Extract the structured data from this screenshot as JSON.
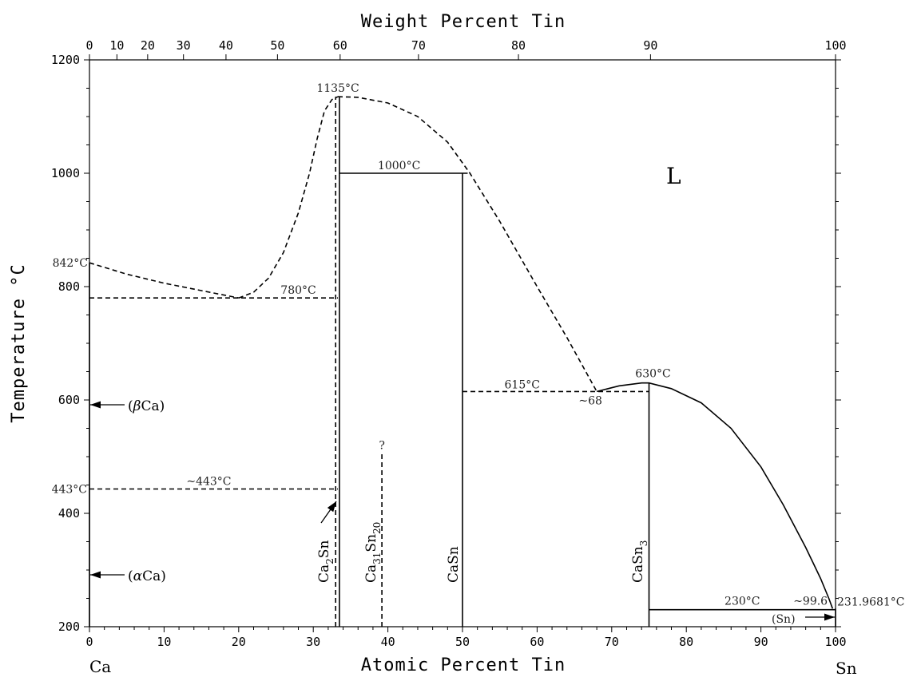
{
  "chart_data": {
    "type": "phase_diagram",
    "title": "",
    "xlabel": "Atomic Percent Tin",
    "x2label": "Weight Percent Tin",
    "ylabel": "Temperature °C",
    "xlim": [
      0,
      100
    ],
    "ylim": [
      200,
      1200
    ],
    "x_ticks": [
      0,
      10,
      20,
      30,
      40,
      50,
      60,
      70,
      80,
      90,
      100
    ],
    "y_ticks": [
      200,
      400,
      600,
      800,
      1000,
      1200
    ],
    "weight_ticks": [
      {
        "wt": 0,
        "at": 0,
        "label": "0"
      },
      {
        "wt": 10,
        "at": 3.68,
        "label": "10"
      },
      {
        "wt": 20,
        "at": 7.8,
        "label": "20"
      },
      {
        "wt": 30,
        "at": 12.6,
        "label": "30"
      },
      {
        "wt": 40,
        "at": 18.3,
        "label": "40"
      },
      {
        "wt": 50,
        "at": 25.2,
        "label": "50"
      },
      {
        "wt": 60,
        "at": 33.6,
        "label": "60"
      },
      {
        "wt": 70,
        "at": 44.1,
        "label": "70"
      },
      {
        "wt": 80,
        "at": 57.5,
        "label": "80"
      },
      {
        "wt": 90,
        "at": 75.2,
        "label": "90"
      },
      {
        "wt": 100,
        "at": 100,
        "label": "100"
      }
    ],
    "left_element": "Ca",
    "right_element": "Sn",
    "lines": [
      {
        "name": "liquidus-ca-side",
        "style": "dashed",
        "points": [
          [
            0,
            842
          ],
          [
            5,
            822
          ],
          [
            10,
            806
          ],
          [
            15,
            793
          ],
          [
            20,
            780
          ]
        ]
      },
      {
        "name": "liquidus-ca2sn-rise",
        "style": "dashed",
        "points": [
          [
            20,
            780
          ],
          [
            22,
            790
          ],
          [
            24,
            815
          ],
          [
            26,
            860
          ],
          [
            28,
            930
          ],
          [
            29.5,
            1000
          ],
          [
            30.5,
            1060
          ],
          [
            31.5,
            1110
          ],
          [
            32.5,
            1130
          ],
          [
            33.3,
            1135
          ]
        ]
      },
      {
        "name": "liquidus-ca2sn-fall",
        "style": "dashed",
        "points": [
          [
            33.3,
            1135
          ],
          [
            36,
            1134
          ],
          [
            40,
            1124
          ],
          [
            44,
            1100
          ],
          [
            48,
            1055
          ],
          [
            51,
            1000
          ],
          [
            55,
            915
          ],
          [
            60,
            800
          ],
          [
            64,
            710
          ],
          [
            68,
            615
          ]
        ]
      },
      {
        "name": "liquidus-casn3",
        "style": "solid",
        "points": [
          [
            68,
            615
          ],
          [
            71,
            625
          ],
          [
            74,
            630
          ],
          [
            75,
            630
          ],
          [
            78,
            620
          ],
          [
            82,
            595
          ],
          [
            86,
            550
          ],
          [
            90,
            482
          ],
          [
            93,
            415
          ],
          [
            96,
            340
          ],
          [
            98,
            285
          ],
          [
            99.1,
            250
          ],
          [
            99.6,
            232
          ]
        ]
      },
      {
        "name": "eutectic-780",
        "style": "dashed",
        "points": [
          [
            0,
            780
          ],
          [
            33.3,
            780
          ]
        ]
      },
      {
        "name": "eutectoid-443",
        "style": "dashed",
        "points": [
          [
            0,
            443
          ],
          [
            33.3,
            443
          ]
        ]
      },
      {
        "name": "peritectic-1000",
        "style": "solid",
        "points": [
          [
            33.5,
            1000
          ],
          [
            50.7,
            1000
          ]
        ]
      },
      {
        "name": "eutectic-615",
        "style": "dashed",
        "points": [
          [
            50,
            615
          ],
          [
            75,
            615
          ]
        ]
      },
      {
        "name": "eutectic-230",
        "style": "solid",
        "points": [
          [
            75,
            230
          ],
          [
            100,
            230
          ]
        ]
      },
      {
        "name": "ca2sn-left",
        "style": "dashed",
        "points": [
          [
            33.0,
            200
          ],
          [
            33.0,
            1135
          ]
        ]
      },
      {
        "name": "ca2sn-right",
        "style": "solid",
        "points": [
          [
            33.5,
            200
          ],
          [
            33.5,
            1135
          ]
        ]
      },
      {
        "name": "ca31sn20",
        "style": "dashed",
        "points": [
          [
            39.2,
            200
          ],
          [
            39.2,
            505
          ]
        ]
      },
      {
        "name": "casn",
        "style": "solid",
        "points": [
          [
            50,
            200
          ],
          [
            50,
            1000
          ]
        ]
      },
      {
        "name": "casn3",
        "style": "solid",
        "points": [
          [
            75,
            200
          ],
          [
            75,
            630
          ]
        ]
      },
      {
        "name": "ca-solvus",
        "style": "solid",
        "points": [
          [
            0,
            200
          ],
          [
            0,
            842
          ]
        ]
      },
      {
        "name": "sn-solvus",
        "style": "solid",
        "points": [
          [
            100,
            200
          ],
          [
            100,
            232
          ]
        ]
      }
    ],
    "annotations": [
      {
        "text": "1135°C",
        "x": 33.3,
        "y": 1135
      },
      {
        "text": "1000°C",
        "x": 41.5,
        "y": 1000
      },
      {
        "text": "842°C",
        "x": 0,
        "y": 842
      },
      {
        "text": "780°C",
        "x": 28,
        "y": 780
      },
      {
        "text": "615°C",
        "x": 58,
        "y": 615
      },
      {
        "text": "~68",
        "x": 68,
        "y": 615
      },
      {
        "text": "630°C",
        "x": 75,
        "y": 630
      },
      {
        "text": "443°C",
        "x": 0,
        "y": 443
      },
      {
        "text": "~443°C",
        "x": 16,
        "y": 443
      },
      {
        "text": "?",
        "x": 39.2,
        "y": 505
      },
      {
        "text": "230°C",
        "x": 87.5,
        "y": 230
      },
      {
        "text": "~99.6",
        "x": 97.5,
        "y": 230
      },
      {
        "text": "231.9681°C",
        "x": 100,
        "y": 232
      }
    ],
    "phase_labels": {
      "liquid": "L",
      "beta_ca_prefix": "(",
      "beta_ca_greek": "β",
      "beta_ca_rest": "Ca)",
      "alpha_ca_prefix": "(",
      "alpha_ca_greek": "α",
      "alpha_ca_rest": "Ca)",
      "sn": "(Sn)",
      "ca2sn": {
        "a": "Ca",
        "b": "2",
        "c": "Sn",
        "d": ""
      },
      "ca31sn20": {
        "a": "Ca",
        "b": "31",
        "c": "Sn",
        "d": "20"
      },
      "casn": {
        "a": "CaSn",
        "b": "",
        "c": "",
        "d": ""
      },
      "casn3": {
        "a": "CaSn",
        "b": "3",
        "c": "",
        "d": ""
      }
    }
  }
}
